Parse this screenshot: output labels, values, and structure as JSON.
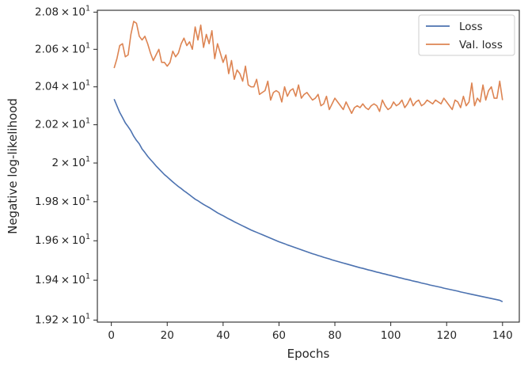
{
  "chart_data": {
    "type": "line",
    "title": "",
    "xlabel": "Epochs",
    "ylabel": "Negative log-likelihood",
    "yscale": "log",
    "xlim": [
      -5,
      146
    ],
    "ylim": [
      19.19,
      20.81
    ],
    "xticks": [
      0,
      20,
      40,
      60,
      80,
      100,
      120,
      140
    ],
    "yticks": [
      {
        "value": 19.2,
        "mantissa": "1.92",
        "base": "10",
        "exp": "1"
      },
      {
        "value": 19.4,
        "mantissa": "1.94",
        "base": "10",
        "exp": "1"
      },
      {
        "value": 19.6,
        "mantissa": "1.96",
        "base": "10",
        "exp": "1"
      },
      {
        "value": 19.8,
        "mantissa": "1.98",
        "base": "10",
        "exp": "1"
      },
      {
        "value": 20.0,
        "mantissa": "2",
        "base": "10",
        "exp": "1"
      },
      {
        "value": 20.2,
        "mantissa": "2.02",
        "base": "10",
        "exp": "1"
      },
      {
        "value": 20.4,
        "mantissa": "2.04",
        "base": "10",
        "exp": "1"
      },
      {
        "value": 20.6,
        "mantissa": "2.06",
        "base": "10",
        "exp": "1"
      },
      {
        "value": 20.8,
        "mantissa": "2.08",
        "base": "10",
        "exp": "1"
      }
    ],
    "grid": false,
    "legend_position": "top-right",
    "x": [
      1,
      2,
      3,
      4,
      5,
      6,
      7,
      8,
      9,
      10,
      11,
      12,
      13,
      14,
      15,
      16,
      17,
      18,
      19,
      20,
      21,
      22,
      23,
      24,
      25,
      26,
      27,
      28,
      29,
      30,
      31,
      32,
      33,
      34,
      35,
      36,
      37,
      38,
      39,
      40,
      41,
      42,
      43,
      44,
      45,
      46,
      47,
      48,
      49,
      50,
      51,
      52,
      53,
      54,
      55,
      56,
      57,
      58,
      59,
      60,
      61,
      62,
      63,
      64,
      65,
      66,
      67,
      68,
      69,
      70,
      71,
      72,
      73,
      74,
      75,
      76,
      77,
      78,
      79,
      80,
      81,
      82,
      83,
      84,
      85,
      86,
      87,
      88,
      89,
      90,
      91,
      92,
      93,
      94,
      95,
      96,
      97,
      98,
      99,
      100,
      101,
      102,
      103,
      104,
      105,
      106,
      107,
      108,
      109,
      110,
      111,
      112,
      113,
      114,
      115,
      116,
      117,
      118,
      119,
      120,
      121,
      122,
      123,
      124,
      125,
      126,
      127,
      128,
      129,
      130,
      131,
      132,
      133,
      134,
      135,
      136,
      137,
      138,
      139,
      140
    ],
    "series": [
      {
        "name": "Loss",
        "color": "#4c72b0",
        "values": [
          20.335,
          20.3,
          20.265,
          20.238,
          20.21,
          20.19,
          20.168,
          20.14,
          20.118,
          20.1,
          20.073,
          20.055,
          20.035,
          20.018,
          20.002,
          19.985,
          19.97,
          19.955,
          19.94,
          19.928,
          19.915,
          19.902,
          19.89,
          19.878,
          19.868,
          19.856,
          19.846,
          19.835,
          19.824,
          19.813,
          19.805,
          19.795,
          19.786,
          19.778,
          19.77,
          19.761,
          19.752,
          19.743,
          19.735,
          19.728,
          19.72,
          19.712,
          19.705,
          19.697,
          19.69,
          19.683,
          19.676,
          19.669,
          19.662,
          19.655,
          19.649,
          19.643,
          19.637,
          19.631,
          19.625,
          19.619,
          19.613,
          19.607,
          19.601,
          19.595,
          19.59,
          19.585,
          19.579,
          19.574,
          19.569,
          19.564,
          19.559,
          19.554,
          19.549,
          19.544,
          19.539,
          19.534,
          19.53,
          19.525,
          19.521,
          19.516,
          19.512,
          19.508,
          19.503,
          19.499,
          19.495,
          19.491,
          19.487,
          19.483,
          19.479,
          19.475,
          19.471,
          19.467,
          19.463,
          19.46,
          19.456,
          19.452,
          19.449,
          19.445,
          19.441,
          19.438,
          19.434,
          19.431,
          19.427,
          19.424,
          19.42,
          19.417,
          19.413,
          19.41,
          19.406,
          19.403,
          19.4,
          19.396,
          19.393,
          19.39,
          19.386,
          19.383,
          19.38,
          19.376,
          19.373,
          19.37,
          19.367,
          19.364,
          19.36,
          19.357,
          19.354,
          19.351,
          19.348,
          19.345,
          19.341,
          19.338,
          19.335,
          19.332,
          19.329,
          19.326,
          19.323,
          19.32,
          19.317,
          19.314,
          19.311,
          19.308,
          19.305,
          19.302,
          19.299,
          19.292
        ]
      },
      {
        "name": "Val. loss",
        "color": "#dd8452",
        "values": [
          20.5,
          20.55,
          20.62,
          20.63,
          20.56,
          20.57,
          20.68,
          20.75,
          20.74,
          20.67,
          20.65,
          20.67,
          20.63,
          20.58,
          20.54,
          20.57,
          20.6,
          20.53,
          20.53,
          20.51,
          20.53,
          20.59,
          20.56,
          20.58,
          20.63,
          20.66,
          20.62,
          20.64,
          20.6,
          20.72,
          20.65,
          20.73,
          20.61,
          20.68,
          20.63,
          20.7,
          20.55,
          20.63,
          20.58,
          20.53,
          20.57,
          20.47,
          20.54,
          20.44,
          20.49,
          20.47,
          20.43,
          20.51,
          20.41,
          20.4,
          20.4,
          20.44,
          20.36,
          20.37,
          20.38,
          20.43,
          20.33,
          20.37,
          20.38,
          20.37,
          20.32,
          20.4,
          20.35,
          20.38,
          20.39,
          20.35,
          20.41,
          20.34,
          20.36,
          20.37,
          20.35,
          20.33,
          20.34,
          20.36,
          20.3,
          20.31,
          20.35,
          20.28,
          20.31,
          20.34,
          20.32,
          20.3,
          20.28,
          20.32,
          20.29,
          20.26,
          20.29,
          20.3,
          20.29,
          20.31,
          20.29,
          20.28,
          20.3,
          20.31,
          20.3,
          20.27,
          20.33,
          20.3,
          20.28,
          20.29,
          20.32,
          20.3,
          20.31,
          20.33,
          20.29,
          20.31,
          20.34,
          20.3,
          20.32,
          20.33,
          20.3,
          20.31,
          20.33,
          20.32,
          20.31,
          20.33,
          20.32,
          20.31,
          20.34,
          20.32,
          20.3,
          20.28,
          20.33,
          20.32,
          20.29,
          20.35,
          20.3,
          20.32,
          20.42,
          20.3,
          20.34,
          20.32,
          20.41,
          20.33,
          20.38,
          20.4,
          20.34,
          20.34,
          20.43,
          20.33
        ]
      }
    ]
  }
}
